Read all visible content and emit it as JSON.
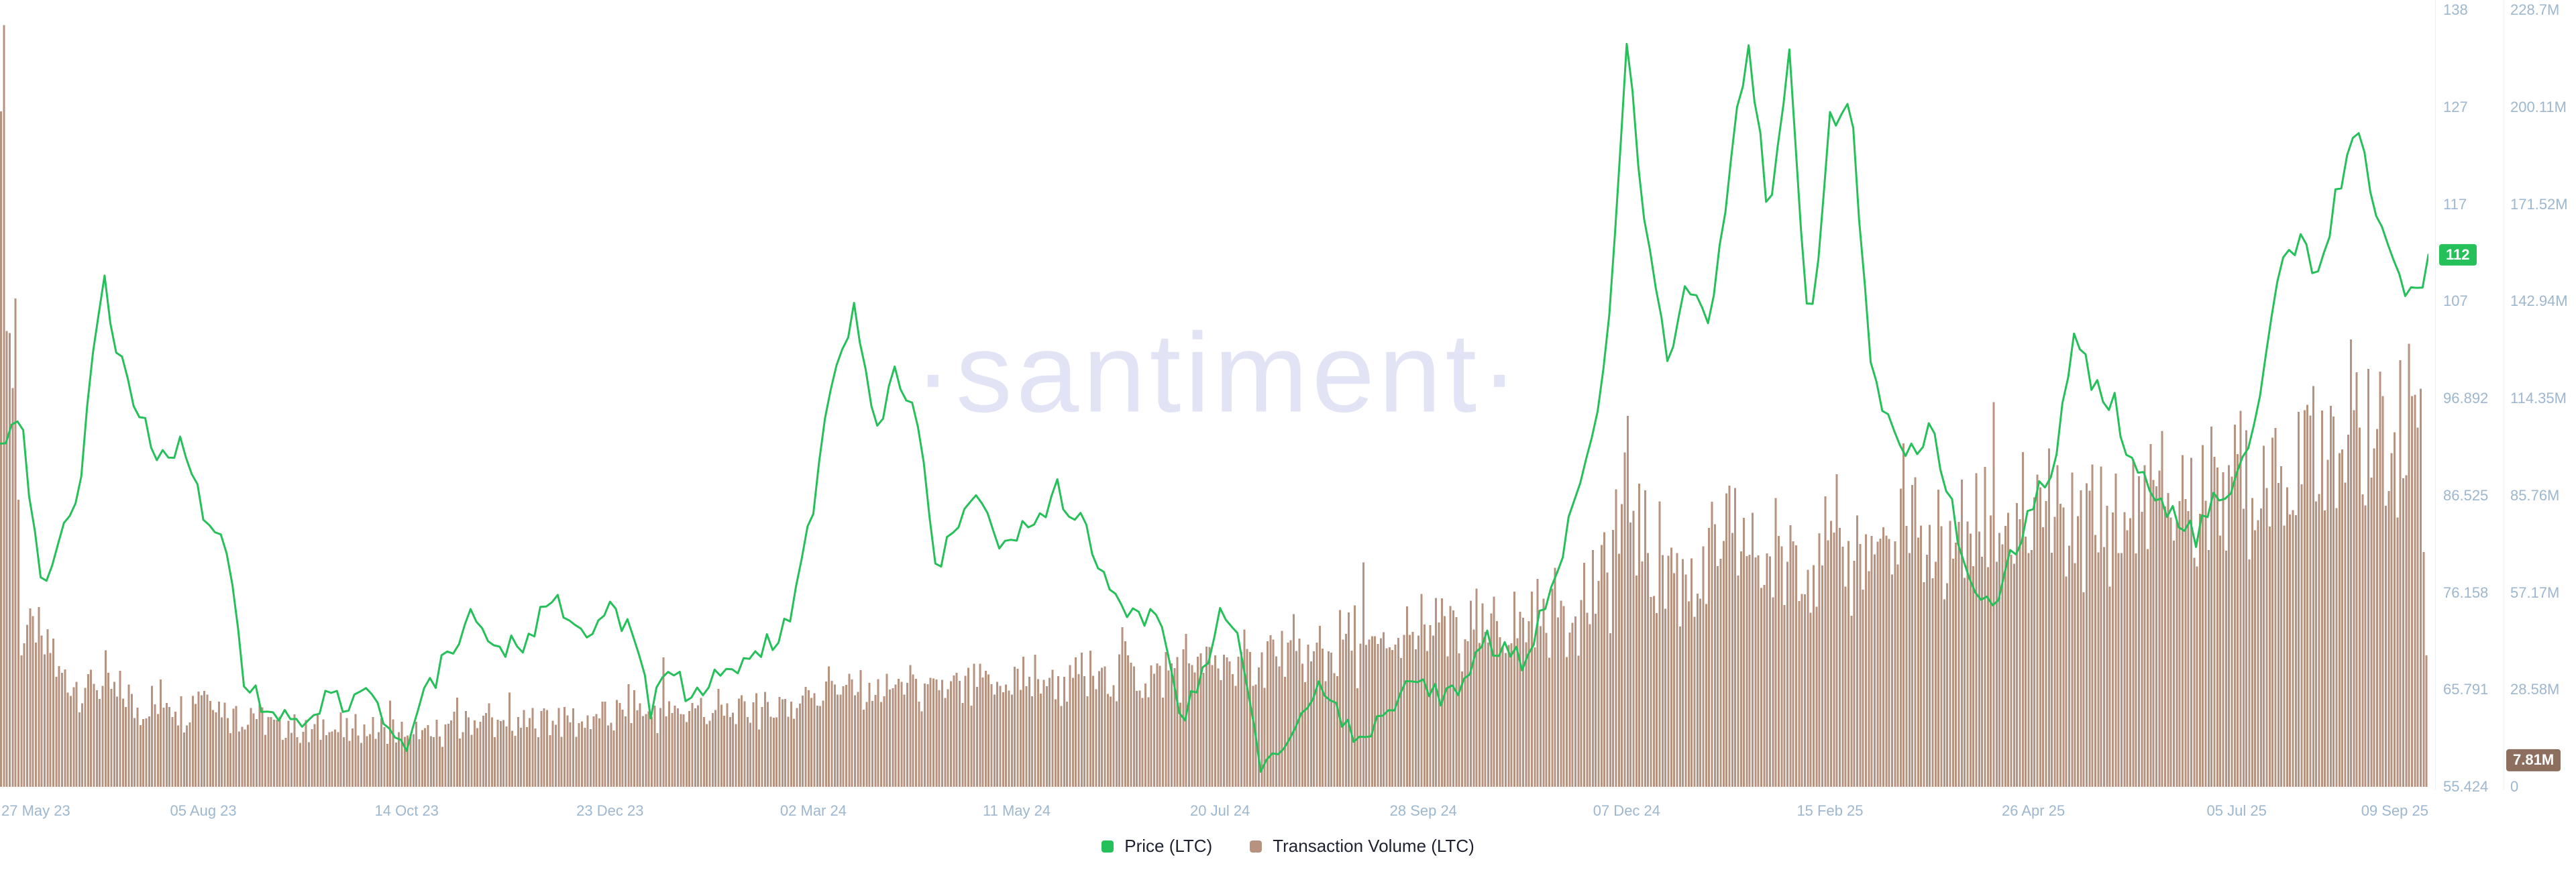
{
  "watermark": "·santiment·",
  "colors": {
    "background": "#FFFFFF",
    "axis_text": "#9DB7CF",
    "watermark": "#E2E4F6",
    "price_green": "#26C05A",
    "volume_brown": "#B7937F",
    "volume_badge_brown": "#8D6F5F"
  },
  "legend": {
    "items": [
      {
        "label": "Price (LTC)",
        "color": "#26C05A"
      },
      {
        "label": "Transaction Volume (LTC)",
        "color": "#B7937F"
      }
    ]
  },
  "axes": {
    "price": {
      "side": "right-inner",
      "ticks": [
        "138",
        "127",
        "117",
        "107",
        "96.892",
        "86.525",
        "76.158",
        "65.791",
        "55.424"
      ],
      "min": 55.424,
      "max": 138,
      "badge": {
        "text": "112",
        "value": 112,
        "color": "#26C05A"
      }
    },
    "volume": {
      "side": "right-outer",
      "ticks": [
        "228.7M",
        "200.11M",
        "171.52M",
        "142.94M",
        "114.35M",
        "85.76M",
        "57.17M",
        "28.58M",
        "0"
      ],
      "min_millions": 0,
      "max_millions": 228.7,
      "badge": {
        "text": "7.81M",
        "value_millions": 7.81,
        "color": "#8D6F5F"
      }
    },
    "x": {
      "ticks": [
        "27 May 23",
        "05 Aug 23",
        "14 Oct 23",
        "23 Dec 23",
        "02 Mar 24",
        "11 May 24",
        "20 Jul 24",
        "28 Sep 24",
        "07 Dec 24",
        "15 Feb 25",
        "26 Apr 25",
        "05 Jul 25",
        "09 Sep 25"
      ],
      "tick_interval_days": 70,
      "start_date": "2023-05-27",
      "end_date": "2025-09-09"
    }
  },
  "chart_data": {
    "type": "line+bar",
    "title": "",
    "sampling": "weekly points estimated from the plotted daily series",
    "x_start_date": "2023-05-27",
    "x_step_days": 7,
    "total_days": 836,
    "price_axis_range": [
      55.424,
      138
    ],
    "volume_axis_range_millions": [
      0,
      228.7
    ],
    "grid": false,
    "legend_position": "bottom-center",
    "series": [
      {
        "name": "Price (LTC)",
        "type": "line",
        "y_axis": "price",
        "unit": "USD",
        "color": "#26C05A",
        "values": [
          91,
          95,
          77,
          81,
          89,
          110,
          100,
          94,
          90,
          93,
          84,
          83,
          66,
          64,
          63,
          62,
          65,
          64,
          66,
          62,
          59,
          66,
          69,
          74,
          72,
          70,
          71,
          76,
          73,
          72,
          74,
          72,
          64,
          68,
          65,
          67,
          68,
          69,
          71,
          74,
          85,
          100,
          106,
          93,
          99,
          96,
          79,
          83,
          86,
          81,
          82,
          84,
          87,
          84,
          80,
          74,
          73,
          74,
          62,
          66,
          74,
          70,
          57,
          60,
          64,
          66,
          62,
          60,
          63,
          66,
          67,
          65,
          67,
          71,
          70,
          69,
          75,
          82,
          90,
          101,
          135,
          113,
          101,
          110,
          104,
          120,
          135,
          116,
          133,
          102,
          126,
          129,
          100,
          94,
          91,
          94,
          85,
          76,
          75,
          80,
          86,
          89,
          103,
          98,
          96,
          89,
          87,
          84,
          82,
          86,
          88,
          95,
          109,
          114,
          109,
          119,
          126,
          115,
          109,
          107
        ]
      },
      {
        "name": "Transaction Volume (LTC)",
        "type": "bar",
        "y_axis": "volume",
        "unit": "millions LTC",
        "color": "#B7937F",
        "values": [
          195,
          48,
          40,
          32,
          27,
          30,
          25,
          22,
          24,
          21,
          27,
          22,
          21,
          18,
          17,
          15,
          17,
          16,
          15,
          16,
          14,
          15,
          16,
          18,
          17,
          16,
          18,
          20,
          19,
          18,
          20,
          22,
          21,
          20,
          22,
          21,
          22,
          23,
          22,
          24,
          27,
          29,
          28,
          26,
          28,
          27,
          26,
          28,
          27,
          28,
          30,
          29,
          30,
          31,
          30,
          32,
          31,
          33,
          34,
          33,
          35,
          34,
          38,
          36,
          37,
          38,
          39,
          40,
          39,
          41,
          42,
          43,
          42,
          44,
          45,
          46,
          48,
          50,
          53,
          58,
          88,
          66,
          60,
          62,
          63,
          66,
          64,
          65,
          67,
          64,
          66,
          67,
          66,
          65,
          67,
          68,
          69,
          70,
          71,
          72,
          73,
          74,
          76,
          77,
          78,
          79,
          80,
          82,
          83,
          85,
          86,
          88,
          90,
          92,
          94,
          96,
          98,
          100,
          102,
          112
        ]
      }
    ],
    "final_point": {
      "date": "2025-09-09",
      "price": 112,
      "volume_millions": 7.81
    },
    "last_values": {
      "price": "112",
      "transaction_volume": "7.81M"
    }
  }
}
